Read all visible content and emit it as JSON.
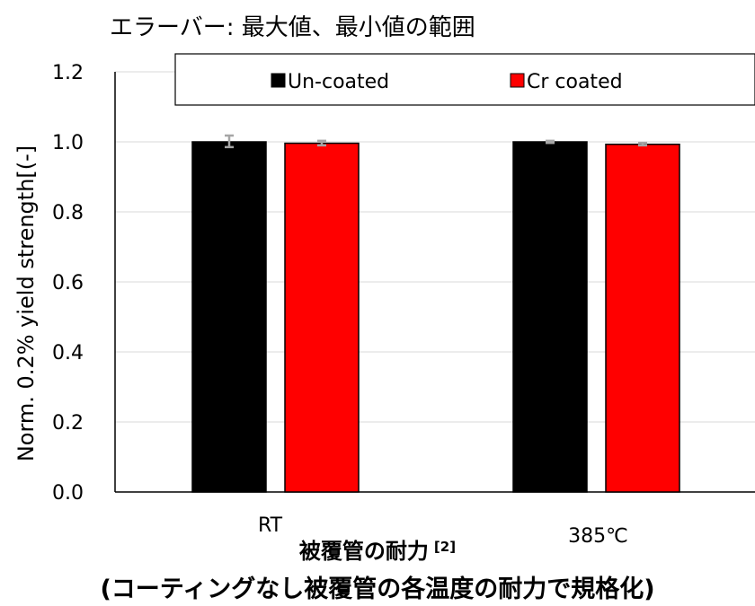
{
  "note": "エラーバー: 最大値、最小値の範囲",
  "xlabel_main": "被覆管の耐力",
  "xlabel_ref": "[2]",
  "caption": "(コーティングなし被覆管の各温度の耐力で規格化)",
  "chart_data": {
    "type": "bar",
    "categories": [
      "RT",
      "385℃"
    ],
    "ylabel": "Norm. 0.2% yield strength[(-]",
    "ylim": [
      0,
      1.2
    ],
    "yticks": [
      "0.0",
      "0.2",
      "0.4",
      "0.6",
      "0.8",
      "1.0",
      "1.2"
    ],
    "grid": true,
    "legend_position": "top",
    "series": [
      {
        "name": "Un-coated",
        "color": "#000000",
        "values": [
          1.0,
          1.0
        ],
        "error_min": [
          0.985,
          0.997
        ],
        "error_max": [
          1.018,
          1.003
        ]
      },
      {
        "name": "Cr coated",
        "color": "#ff0000",
        "values": [
          0.996,
          0.993
        ],
        "error_min": [
          0.99,
          0.99
        ],
        "error_max": [
          1.003,
          0.997
        ]
      }
    ],
    "errorbar_color": "#a6a6a6"
  }
}
